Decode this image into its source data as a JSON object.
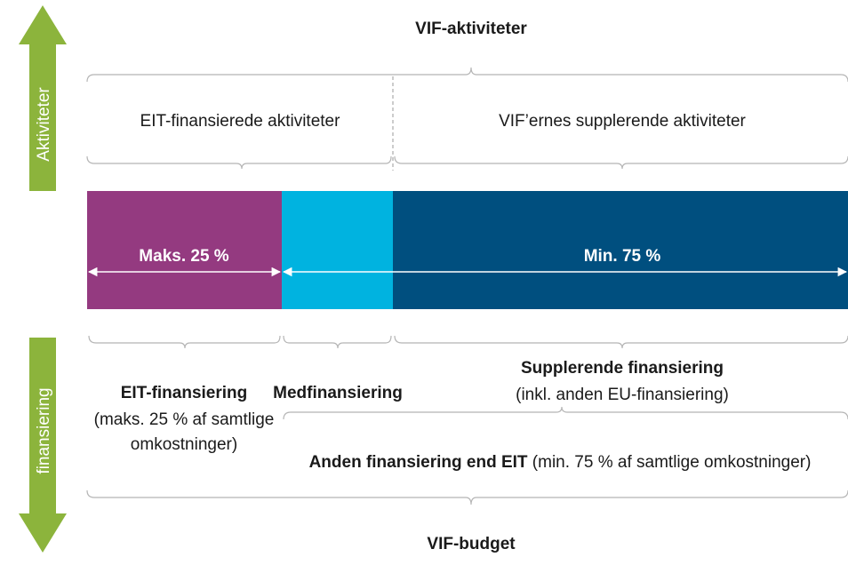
{
  "header": {
    "title": "VIF-aktiviteter",
    "footer": "VIF-budget"
  },
  "side": {
    "top": "Aktiviteter",
    "bottom": "finansiering"
  },
  "activities": {
    "left": "EIT-finansierede aktiviteter",
    "right": "VIF’ernes supplerende aktiviteter"
  },
  "bar": {
    "left": "Maks. 25 %",
    "right": "Min. 75 %"
  },
  "funding": {
    "eit": {
      "title": "EIT-finansiering",
      "note_line1": "(maks. 25 % af samtlige",
      "note_line2": "omkostninger)"
    },
    "co": {
      "title": "Medfinansiering"
    },
    "supplementary": {
      "title": "Supplerende finansiering",
      "note": "(inkl. anden EU-finansiering)"
    },
    "other": {
      "title": "Anden finansiering end EIT",
      "note": " (min. 75 % af samtlige omkostninger)"
    }
  }
}
